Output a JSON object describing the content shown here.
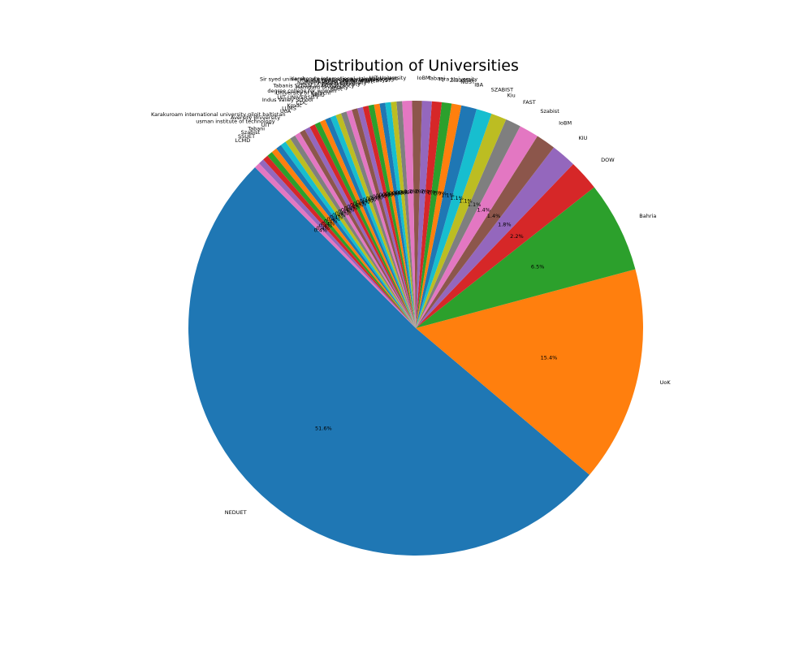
{
  "chart_data": {
    "type": "pie",
    "title": "Distribution of Universities",
    "start_angle_deg": 135,
    "direction": "counterclockwise",
    "value_unit": "%",
    "slices": [
      {
        "label": "NEDUET",
        "value": 51.6,
        "pct_label": "51.6%",
        "color": "#1f77b4"
      },
      {
        "label": "UoK",
        "value": 15.4,
        "pct_label": "15.4%",
        "color": "#ff7f0e"
      },
      {
        "label": "Bahria",
        "value": 6.5,
        "pct_label": "6.5%",
        "color": "#2ca02c"
      },
      {
        "label": "DOW",
        "value": 2.2,
        "pct_label": "2.2%",
        "color": "#d62728"
      },
      {
        "label": "KIU",
        "value": 1.8,
        "pct_label": "1.8%",
        "color": "#9467bd"
      },
      {
        "label": "IoBM",
        "value": 1.4,
        "pct_label": "1.4%",
        "color": "#8c564b"
      },
      {
        "label": "Szabist",
        "value": 1.4,
        "pct_label": "1.4%",
        "color": "#e377c2"
      },
      {
        "label": "FAST",
        "value": 1.1,
        "pct_label": "1.1%",
        "color": "#7f7f7f"
      },
      {
        "label": "Kiu",
        "value": 1.1,
        "pct_label": "1.1%",
        "color": "#bcbd22"
      },
      {
        "label": "SZABIST",
        "value": 1.1,
        "pct_label": "1.1%",
        "color": "#17becf"
      },
      {
        "label": "IBA",
        "value": 1.1,
        "pct_label": "1.1%",
        "color": "#1f77b4"
      },
      {
        "label": "NUST",
        "value": 0.7,
        "pct_label": "0.7%",
        "color": "#ff7f0e"
      },
      {
        "label": "Ziauddin",
        "value": 0.7,
        "pct_label": "0.7%",
        "color": "#2ca02c"
      },
      {
        "label": "Iqra University",
        "value": 0.7,
        "pct_label": "0.7%",
        "color": "#d62728"
      },
      {
        "label": "Tabani",
        "value": 0.7,
        "pct_label": "0.7%",
        "color": "#9467bd"
      },
      {
        "label": "IoBM",
        "value": 0.7,
        "pct_label": "0.7%",
        "color": "#8c564b"
      },
      {
        "label": "UIT University",
        "value": 0.7,
        "pct_label": "0.7%",
        "color": "#e377c2"
      },
      {
        "label": "Karakorum International university gilgit",
        "value": 0.4,
        "pct_label": "0.4%",
        "color": "#7f7f7f"
      },
      {
        "label": "Sir syed university of engineering and technology",
        "value": 0.4,
        "pct_label": "0.4%",
        "color": "#bcbd22"
      },
      {
        "label": "Indus university",
        "value": 0.4,
        "pct_label": "0.4%",
        "color": "#17becf"
      },
      {
        "label": "Jinnah University for Women",
        "value": 0.4,
        "pct_label": "0.4%",
        "color": "#1f77b4"
      },
      {
        "label": "Indus Valley School of Art",
        "value": 0.4,
        "pct_label": "0.4%",
        "color": "#ff7f0e"
      },
      {
        "label": "Nazeer Hussain University",
        "value": 0.4,
        "pct_label": "0.4%",
        "color": "#2ca02c"
      },
      {
        "label": "Iqra University",
        "value": 0.4,
        "pct_label": "0.4%",
        "color": "#d62728"
      },
      {
        "label": "Tabanis School of Accountancy",
        "value": 0.4,
        "pct_label": "0.4%",
        "color": "#9467bd"
      },
      {
        "label": "Hamdard University",
        "value": 0.4,
        "pct_label": "0.4%",
        "color": "#8c564b"
      },
      {
        "label": "duet",
        "value": 0.4,
        "pct_label": "0.4%",
        "color": "#e377c2"
      },
      {
        "label": "degree college for women",
        "value": 0.4,
        "pct_label": "0.4%",
        "color": "#7f7f7f"
      },
      {
        "label": "University of Karachi",
        "value": 0.4,
        "pct_label": "0.4%",
        "color": "#bcbd22"
      },
      {
        "label": "SMIU",
        "value": 0.4,
        "pct_label": "0.4%",
        "color": "#17becf"
      },
      {
        "label": "UIT UNIVERSITY",
        "value": 0.4,
        "pct_label": "0.4%",
        "color": "#1f77b4"
      },
      {
        "label": "Indus Valley School",
        "value": 0.4,
        "pct_label": "0.4%",
        "color": "#ff7f0e"
      },
      {
        "label": "CDC",
        "value": 0.4,
        "pct_label": "0.4%",
        "color": "#2ca02c"
      },
      {
        "label": "Kmdc",
        "value": 0.4,
        "pct_label": "0.4%",
        "color": "#d62728"
      },
      {
        "label": "LUMS",
        "value": 0.4,
        "pct_label": "0.4%",
        "color": "#9467bd"
      },
      {
        "label": "UoA",
        "value": 0.4,
        "pct_label": "0.4%",
        "color": "#8c564b"
      },
      {
        "label": "Karakuroam international university gilgit baltistan",
        "value": 0.4,
        "pct_label": "0.4%",
        "color": "#e377c2"
      },
      {
        "label": "Aversity University",
        "value": 0.4,
        "pct_label": "0.4%",
        "color": "#7f7f7f"
      },
      {
        "label": "usman institute of technology",
        "value": 0.4,
        "pct_label": "0.4%",
        "color": "#bcbd22"
      },
      {
        "label": "UIT",
        "value": 0.4,
        "pct_label": "0.4%",
        "color": "#17becf"
      },
      {
        "label": "Tabani",
        "value": 0.4,
        "pct_label": "0.4%",
        "color": "#1f77b4"
      },
      {
        "label": "Szabist",
        "value": 0.4,
        "pct_label": "0.4%",
        "color": "#ff7f0e"
      },
      {
        "label": "SSUET",
        "value": 0.4,
        "pct_label": "0.4%",
        "color": "#2ca02c"
      },
      {
        "label": "LCMD",
        "value": 0.4,
        "pct_label": "0.4%",
        "color": "#d62728"
      },
      {
        "label": "",
        "value": 0.4,
        "pct_label": "0.4%",
        "color": "#9467bd"
      },
      {
        "label": "",
        "value": 0.4,
        "pct_label": "0.4%",
        "color": "#e377c2"
      }
    ]
  }
}
